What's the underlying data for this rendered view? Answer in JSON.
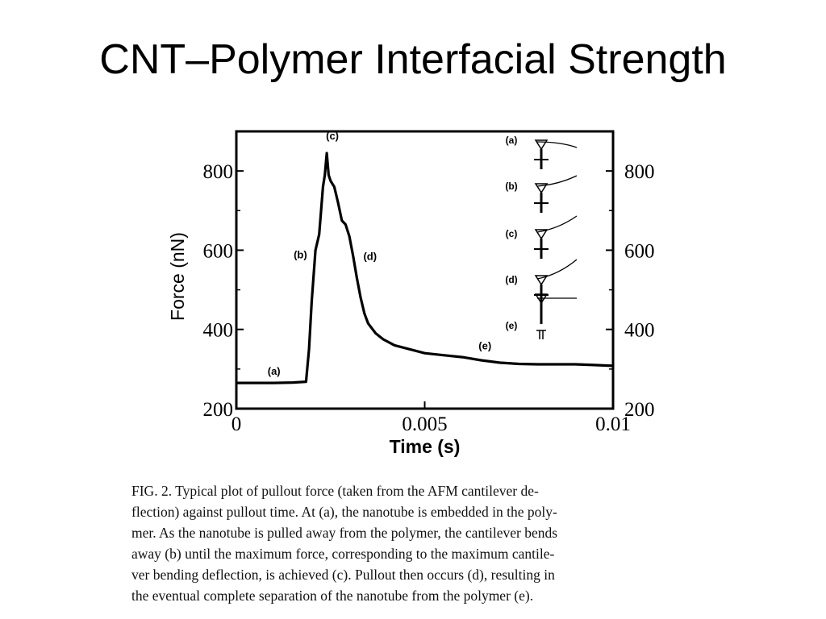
{
  "slide": {
    "title": "CNT–Polymer Interfacial Strength"
  },
  "chart_data": {
    "type": "line",
    "xlabel": "Time (s)",
    "ylabel": "Force (nN)",
    "xlim": [
      0,
      0.01
    ],
    "ylim": [
      200,
      900
    ],
    "x_ticks": [
      0,
      0.005,
      0.01
    ],
    "x_tick_labels": [
      "0",
      "0.005",
      "0.01"
    ],
    "y_ticks": [
      200,
      400,
      600,
      800
    ],
    "y_tick_labels": [
      "200",
      "400",
      "600",
      "800"
    ],
    "right_y_tick_labels": [
      "200",
      "400",
      "600",
      "800"
    ],
    "grid": false,
    "series": [
      {
        "x": [
          0,
          0.0005,
          0.001,
          0.0015,
          0.00185,
          0.00193,
          0.002,
          0.0021,
          0.0022,
          0.0023,
          0.00235,
          0.0024,
          0.00245,
          0.0025,
          0.0026,
          0.0027,
          0.0028,
          0.0029,
          0.003,
          0.0031,
          0.0032,
          0.0033,
          0.0034,
          0.0035,
          0.0037,
          0.0039,
          0.0042,
          0.0046,
          0.005,
          0.0055,
          0.006,
          0.0065,
          0.007,
          0.0075,
          0.008,
          0.0085,
          0.009,
          0.0095,
          0.01
        ],
        "y": [
          265,
          265,
          265,
          266,
          268,
          350,
          470,
          600,
          640,
          760,
          790,
          845,
          790,
          775,
          760,
          720,
          675,
          665,
          635,
          585,
          530,
          480,
          440,
          415,
          390,
          375,
          360,
          350,
          340,
          335,
          330,
          322,
          316,
          313,
          312,
          312,
          312,
          310,
          308
        ]
      }
    ],
    "annotations": [
      {
        "label": "(a)",
        "x": 0.001,
        "y": 285
      },
      {
        "label": "(b)",
        "x": 0.0017,
        "y": 580
      },
      {
        "label": "(c)",
        "x": 0.00255,
        "y": 880
      },
      {
        "label": "(d)",
        "x": 0.00355,
        "y": 575
      },
      {
        "label": "(e)",
        "x": 0.0066,
        "y": 350
      }
    ],
    "inset_labels": [
      "(a)",
      "(b)",
      "(c)",
      "(d)",
      "(e)"
    ]
  },
  "caption": {
    "lines": [
      "FIG. 2.  Typical plot of pullout force (taken from the AFM cantilever de-",
      "flection) against pullout time. At (a), the nanotube is embedded in the poly-",
      "mer. As the nanotube is pulled away from the polymer, the cantilever bends",
      "away (b) until the maximum force, corresponding to the maximum cantile-",
      "ver bending deflection, is achieved (c). Pullout then occurs (d), resulting in",
      "the eventual complete separation of the nanotube from the polymer (e)."
    ]
  }
}
